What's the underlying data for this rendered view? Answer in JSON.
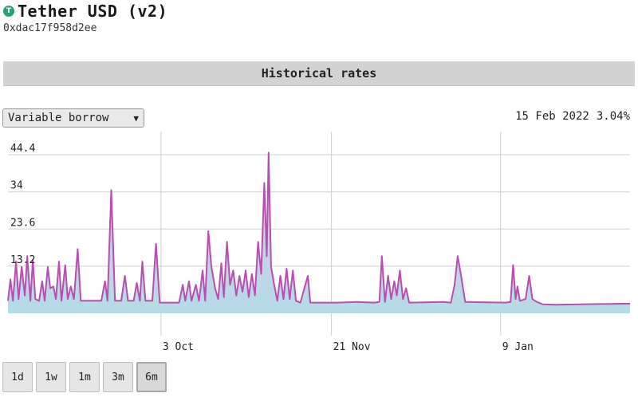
{
  "token": {
    "icon_glyph": "T",
    "icon_color": "#26a17b",
    "name": "Tether USD (v2)",
    "address": "0xdac17f958d2ee"
  },
  "section": {
    "title": "Historical rates"
  },
  "rate_select": {
    "selected": "Variable borrow",
    "icon": "chevron-down-icon"
  },
  "readout": {
    "date": "15 Feb 2022",
    "value": "3.04%"
  },
  "range_buttons": [
    {
      "label": "1d",
      "active": false
    },
    {
      "label": "1w",
      "active": false
    },
    {
      "label": "1m",
      "active": false
    },
    {
      "label": "3m",
      "active": false
    },
    {
      "label": "6m",
      "active": true
    }
  ],
  "colors": {
    "line": "#b84eb0",
    "fill_top": "#e4c0e4",
    "fill_bottom": "#b4dce6",
    "grid": "#cfcfcf"
  },
  "chart_data": {
    "type": "area",
    "ylim": [
      0,
      48
    ],
    "yticks": [
      {
        "value": 13.2,
        "label": "13.2"
      },
      {
        "value": 23.6,
        "label": "23.6"
      },
      {
        "value": 34,
        "label": "34"
      },
      {
        "value": 44.4,
        "label": "44.4"
      }
    ],
    "xticks": [
      {
        "value": 0.246,
        "label": "3 Oct"
      },
      {
        "value": 0.52,
        "label": "21 Nov"
      },
      {
        "value": 0.792,
        "label": "9 Jan"
      }
    ],
    "series": [
      {
        "values": [
          [
            0.0,
            3.5
          ],
          [
            0.004,
            9.5
          ],
          [
            0.008,
            3.5
          ],
          [
            0.013,
            14.5
          ],
          [
            0.017,
            4.0
          ],
          [
            0.022,
            13.0
          ],
          [
            0.027,
            5.0
          ],
          [
            0.031,
            16.0
          ],
          [
            0.036,
            3.5
          ],
          [
            0.04,
            15.0
          ],
          [
            0.044,
            4.0
          ],
          [
            0.05,
            3.5
          ],
          [
            0.055,
            9.0
          ],
          [
            0.059,
            3.5
          ],
          [
            0.064,
            13.0
          ],
          [
            0.068,
            7.0
          ],
          [
            0.073,
            7.5
          ],
          [
            0.077,
            4.0
          ],
          [
            0.082,
            14.5
          ],
          [
            0.086,
            3.5
          ],
          [
            0.092,
            13.5
          ],
          [
            0.096,
            4.0
          ],
          [
            0.101,
            7.5
          ],
          [
            0.106,
            4.0
          ],
          [
            0.112,
            18.0
          ],
          [
            0.117,
            3.5
          ],
          [
            0.15,
            3.5
          ],
          [
            0.156,
            9.0
          ],
          [
            0.16,
            3.5
          ],
          [
            0.166,
            34.5
          ],
          [
            0.172,
            3.5
          ],
          [
            0.182,
            3.5
          ],
          [
            0.188,
            10.5
          ],
          [
            0.193,
            3.5
          ],
          [
            0.202,
            3.5
          ],
          [
            0.207,
            8.5
          ],
          [
            0.212,
            3.5
          ],
          [
            0.216,
            14.5
          ],
          [
            0.221,
            3.5
          ],
          [
            0.232,
            3.5
          ],
          [
            0.238,
            19.5
          ],
          [
            0.244,
            3.0
          ],
          [
            0.275,
            3.0
          ],
          [
            0.281,
            8.0
          ],
          [
            0.285,
            3.5
          ],
          [
            0.291,
            9.0
          ],
          [
            0.295,
            3.5
          ],
          [
            0.302,
            8.0
          ],
          [
            0.307,
            3.5
          ],
          [
            0.313,
            12.0
          ],
          [
            0.317,
            3.5
          ],
          [
            0.322,
            23.0
          ],
          [
            0.327,
            13.0
          ],
          [
            0.333,
            7.0
          ],
          [
            0.338,
            4.0
          ],
          [
            0.343,
            14.0
          ],
          [
            0.347,
            4.5
          ],
          [
            0.352,
            20.0
          ],
          [
            0.357,
            8.0
          ],
          [
            0.362,
            12.0
          ],
          [
            0.367,
            5.0
          ],
          [
            0.372,
            10.5
          ],
          [
            0.377,
            6.0
          ],
          [
            0.382,
            12.0
          ],
          [
            0.387,
            4.5
          ],
          [
            0.392,
            11.0
          ],
          [
            0.397,
            5.0
          ],
          [
            0.402,
            20.0
          ],
          [
            0.407,
            11.0
          ],
          [
            0.412,
            36.5
          ],
          [
            0.416,
            16.0
          ],
          [
            0.419,
            45.0
          ],
          [
            0.423,
            13.0
          ],
          [
            0.428,
            8.0
          ],
          [
            0.433,
            3.5
          ],
          [
            0.438,
            10.5
          ],
          [
            0.443,
            4.0
          ],
          [
            0.448,
            12.5
          ],
          [
            0.453,
            4.0
          ],
          [
            0.458,
            12.0
          ],
          [
            0.463,
            3.5
          ],
          [
            0.47,
            3.0
          ],
          [
            0.482,
            10.5
          ],
          [
            0.486,
            3.0
          ],
          [
            0.49,
            3.0
          ],
          [
            0.53,
            3.0
          ],
          [
            0.56,
            3.2
          ],
          [
            0.59,
            3.0
          ],
          [
            0.597,
            3.2
          ],
          [
            0.601,
            16.0
          ],
          [
            0.606,
            3.2
          ],
          [
            0.611,
            10.5
          ],
          [
            0.616,
            4.0
          ],
          [
            0.621,
            9.0
          ],
          [
            0.625,
            5.0
          ],
          [
            0.63,
            12.0
          ],
          [
            0.635,
            4.0
          ],
          [
            0.64,
            7.0
          ],
          [
            0.645,
            3.0
          ],
          [
            0.7,
            3.2
          ],
          [
            0.712,
            3.0
          ],
          [
            0.718,
            8.0
          ],
          [
            0.723,
            16.0
          ],
          [
            0.728,
            11.0
          ],
          [
            0.735,
            3.2
          ],
          [
            0.8,
            3.0
          ],
          [
            0.808,
            3.2
          ],
          [
            0.812,
            13.5
          ],
          [
            0.816,
            4.0
          ],
          [
            0.819,
            7.5
          ],
          [
            0.823,
            3.5
          ],
          [
            0.832,
            4.0
          ],
          [
            0.838,
            10.5
          ],
          [
            0.843,
            4.0
          ],
          [
            0.85,
            3.2
          ],
          [
            0.86,
            2.5
          ],
          [
            0.88,
            2.4
          ],
          [
            0.95,
            2.6
          ],
          [
            1.0,
            2.7
          ]
        ]
      }
    ]
  }
}
